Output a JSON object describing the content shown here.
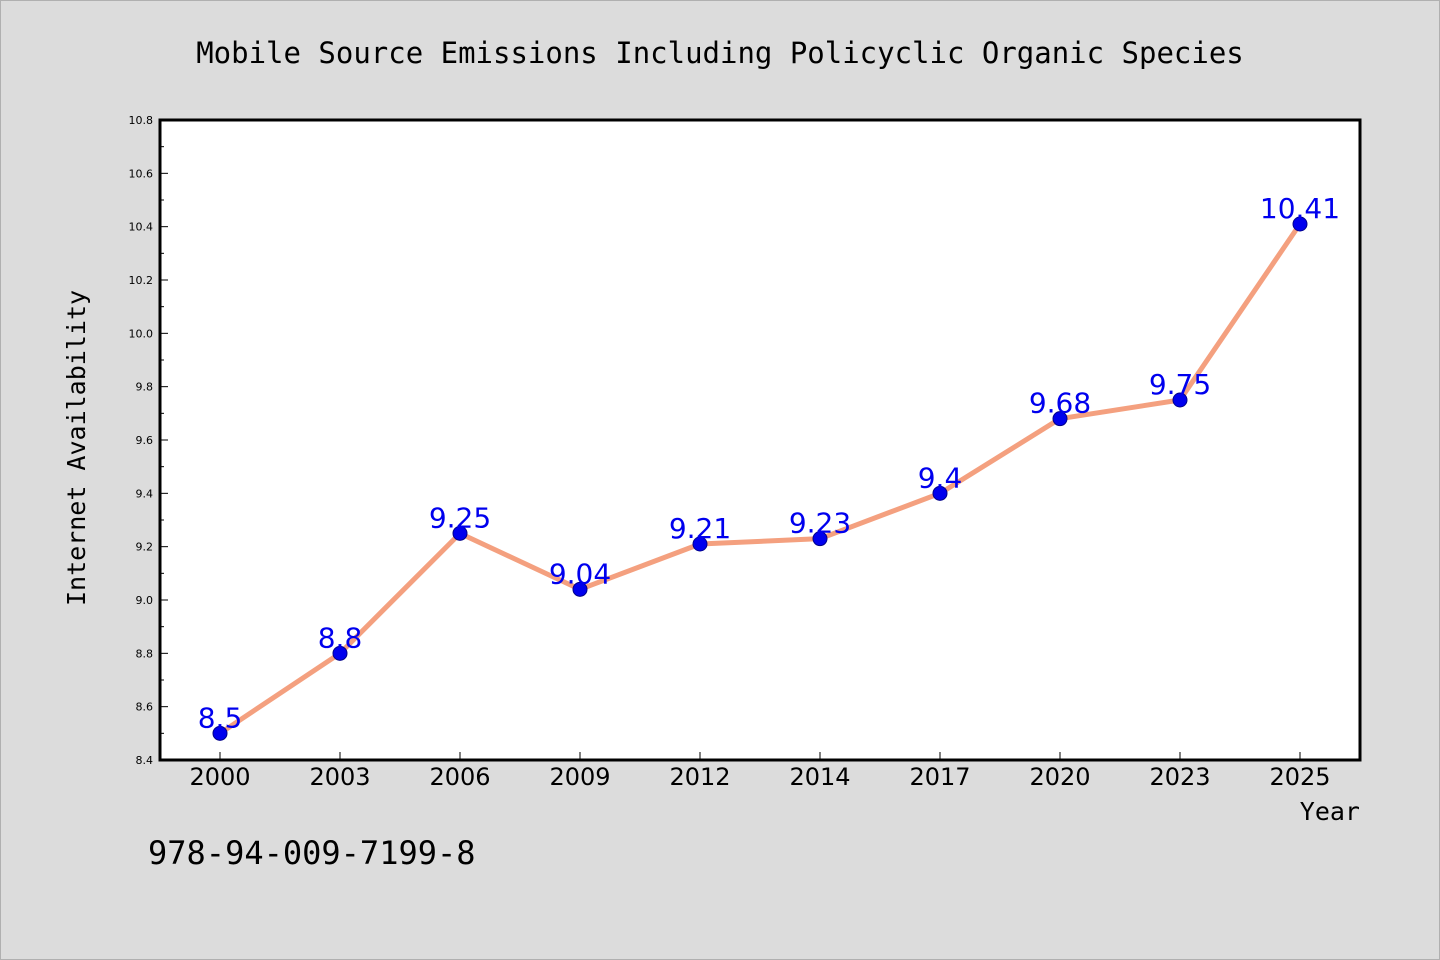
{
  "chart_data": {
    "type": "line",
    "title": "Mobile Source Emissions Including Policyclic Organic Species",
    "xlabel": "Year",
    "ylabel": "Internet Availability",
    "categories": [
      "2000",
      "2003",
      "2006",
      "2009",
      "2012",
      "2014",
      "2017",
      "2020",
      "2023",
      "2025"
    ],
    "series": [
      {
        "values": [
          8.5,
          8.8,
          9.25,
          9.04,
          9.21,
          9.23,
          9.4,
          9.68,
          9.75,
          10.41
        ]
      }
    ],
    "data_labels": [
      "8.5",
      "8.8",
      "9.25",
      "9.04",
      "9.21",
      "9.23",
      "9.4",
      "9.68",
      "9.75",
      "10.41"
    ],
    "ylim": [
      8.4,
      10.8
    ],
    "yticks": [
      "8.4",
      "8.6",
      "8.8",
      "9.0",
      "9.2",
      "9.4",
      "9.6",
      "9.8",
      "10.0",
      "10.2",
      "10.4",
      "10.6",
      "10.8"
    ],
    "grid": false,
    "legend": "none",
    "colors": {
      "line": "#f4a07f",
      "marker": "#0000ee",
      "data_label": "#0000ee",
      "background": "#dcdcdc",
      "plot_area": "#ffffff"
    },
    "annotation": "978-94-009-7199-8"
  }
}
